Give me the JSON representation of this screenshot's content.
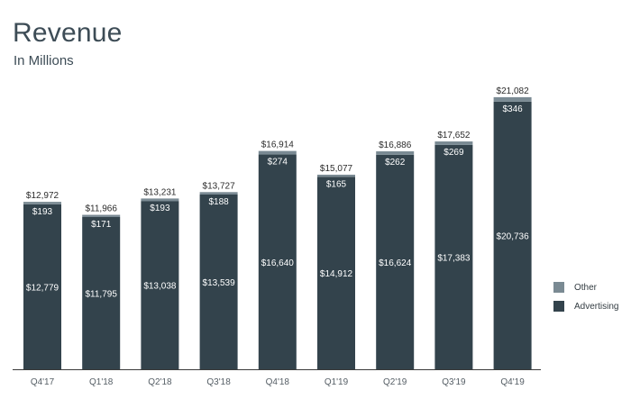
{
  "title": "Revenue",
  "subtitle": "In Millions",
  "colors": {
    "advertising": "#33434c",
    "other": "#7a8a93",
    "axis": "#3a3a3a"
  },
  "legend": [
    {
      "name": "Other",
      "color": "#7a8a93"
    },
    {
      "name": "Advertising",
      "color": "#33434c"
    }
  ],
  "chart_data": {
    "type": "bar",
    "stacked": true,
    "categories": [
      "Q4'17",
      "Q1'18",
      "Q2'18",
      "Q3'18",
      "Q4'18",
      "Q1'19",
      "Q2'19",
      "Q3'19",
      "Q4'19"
    ],
    "series": [
      {
        "name": "Advertising",
        "values": [
          12779,
          11795,
          13038,
          13539,
          16640,
          14912,
          16624,
          17383,
          20736
        ]
      },
      {
        "name": "Other",
        "values": [
          193,
          171,
          193,
          188,
          274,
          165,
          262,
          269,
          346
        ]
      }
    ],
    "totals": [
      12972,
      11966,
      13231,
      13727,
      16914,
      15077,
      16886,
      17652,
      21082
    ],
    "series_labels": {
      "Advertising": [
        "$12,779",
        "$11,795",
        "$13,038",
        "$13,539",
        "$16,640",
        "$14,912",
        "$16,624",
        "$17,383",
        "$20,736"
      ],
      "Other": [
        "$193",
        "$171",
        "$193",
        "$188",
        "$274",
        "$165",
        "$262",
        "$269",
        "$346"
      ]
    },
    "total_labels": [
      "$12,972",
      "$11,966",
      "$13,231",
      "$13,727",
      "$16,914",
      "$15,077",
      "$16,886",
      "$17,652",
      "$21,082"
    ],
    "title": "Revenue",
    "subtitle": "In Millions",
    "xlabel": "",
    "ylabel": "",
    "ylim": [
      0,
      22000
    ],
    "grid": false,
    "legend_position": "right"
  }
}
